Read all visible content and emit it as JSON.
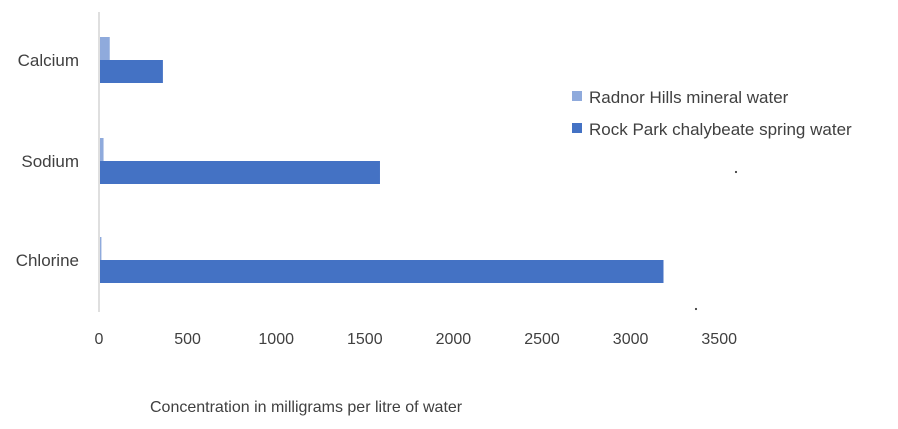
{
  "chart_data": {
    "type": "bar",
    "orientation": "horizontal",
    "categories": [
      "Calcium",
      "Sodium",
      "Chlorine"
    ],
    "series": [
      {
        "name": "Radnor Hills mineral water",
        "color": "#8faadc",
        "values": [
          55,
          20,
          8
        ]
      },
      {
        "name": "Rock Park chalybeate spring water",
        "color": "#4472c4",
        "values": [
          355,
          1580,
          3180
        ]
      }
    ],
    "xlabel": "Concentration in milligrams per litre of water",
    "xticks": [
      "0",
      "500",
      "1000",
      "1500",
      "2000",
      "2500",
      "3000",
      "3500"
    ],
    "xlim": [
      0,
      3500
    ],
    "grid": false,
    "legend_position": "right"
  }
}
